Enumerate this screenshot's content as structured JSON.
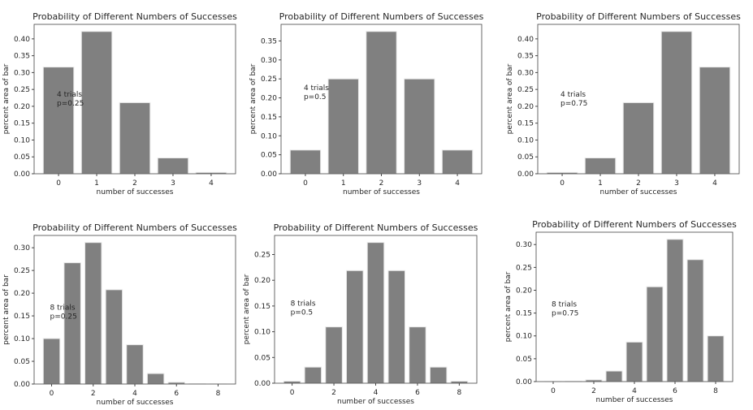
{
  "chart_data": [
    {
      "type": "bar",
      "title": "Probability of Different Numbers of Successes",
      "xlabel": "number of successes",
      "ylabel": "percent area of bar",
      "annotation": [
        "4 trials",
        "p=0.25"
      ],
      "x": [
        0,
        1,
        2,
        3,
        4
      ],
      "values": [
        0.3164,
        0.4219,
        0.2109,
        0.0469,
        0.0039
      ],
      "yticks": [
        0,
        0.05,
        0.1,
        0.15,
        0.2,
        0.25,
        0.3,
        0.35,
        0.4
      ],
      "xticks": [
        0,
        1,
        2,
        3,
        4
      ],
      "bar_color": "#808080",
      "ann_y": 0.25
    },
    {
      "type": "bar",
      "title": "Probability of Different Numbers of Successes",
      "xlabel": "number of successes",
      "ylabel": "percent area of bar",
      "annotation": [
        "4 trials",
        "p=0.5"
      ],
      "x": [
        0,
        1,
        2,
        3,
        4
      ],
      "values": [
        0.0625,
        0.25,
        0.375,
        0.25,
        0.0625
      ],
      "yticks": [
        0,
        0.05,
        0.1,
        0.15,
        0.2,
        0.25,
        0.3,
        0.35
      ],
      "xticks": [
        0,
        1,
        2,
        3,
        4
      ],
      "bar_color": "#808080",
      "ann_y": 0.24
    },
    {
      "type": "bar",
      "title": "Probability of Different Numbers of Successes",
      "xlabel": "number of successes",
      "ylabel": "percent area of bar",
      "annotation": [
        "4 trials",
        "p=0.75"
      ],
      "x": [
        0,
        1,
        2,
        3,
        4
      ],
      "values": [
        0.0039,
        0.0469,
        0.2109,
        0.4219,
        0.3164
      ],
      "yticks": [
        0,
        0.05,
        0.1,
        0.15,
        0.2,
        0.25,
        0.3,
        0.35,
        0.4
      ],
      "xticks": [
        0,
        1,
        2,
        3,
        4
      ],
      "bar_color": "#808080",
      "ann_y": 0.25
    },
    {
      "type": "bar",
      "title": "Probability of Different Numbers of Successes",
      "xlabel": "number of successes",
      "ylabel": "percent area of bar",
      "annotation": [
        "8 trials",
        "p=0.25"
      ],
      "x": [
        0,
        1,
        2,
        3,
        4,
        5,
        6,
        7,
        8
      ],
      "values": [
        0.1001,
        0.267,
        0.3115,
        0.2076,
        0.0865,
        0.0231,
        0.0038,
        0.0004,
        2e-05
      ],
      "yticks": [
        0,
        0.05,
        0.1,
        0.15,
        0.2,
        0.25,
        0.3
      ],
      "xticks": [
        0,
        2,
        4,
        6,
        8
      ],
      "bar_color": "#808080",
      "ann_y": 0.18
    },
    {
      "type": "bar",
      "title": "Probability of Different Numbers of Successes",
      "xlabel": "number of successes",
      "ylabel": "percent area of bar",
      "annotation": [
        "8 trials",
        "p=0.5"
      ],
      "x": [
        0,
        1,
        2,
        3,
        4,
        5,
        6,
        7,
        8
      ],
      "values": [
        0.0039,
        0.0313,
        0.1094,
        0.2188,
        0.2734,
        0.2188,
        0.1094,
        0.0313,
        0.0039
      ],
      "yticks": [
        0,
        0.05,
        0.1,
        0.15,
        0.2,
        0.25
      ],
      "xticks": [
        0,
        2,
        4,
        6,
        8
      ],
      "bar_color": "#808080",
      "ann_y": 0.165
    },
    {
      "type": "bar",
      "title": "Probability of Different Numbers of Successes",
      "xlabel": "number of successes",
      "ylabel": "percent area of bar",
      "annotation": [
        "8 trials",
        "p=0.75"
      ],
      "x": [
        0,
        1,
        2,
        3,
        4,
        5,
        6,
        7,
        8
      ],
      "values": [
        2e-05,
        0.0004,
        0.0038,
        0.0231,
        0.0865,
        0.2076,
        0.3115,
        0.267,
        0.1001
      ],
      "yticks": [
        0,
        0.05,
        0.1,
        0.15,
        0.2,
        0.25,
        0.3
      ],
      "xticks": [
        0,
        2,
        4,
        6,
        8
      ],
      "bar_color": "#808080",
      "ann_y": 0.18
    }
  ]
}
